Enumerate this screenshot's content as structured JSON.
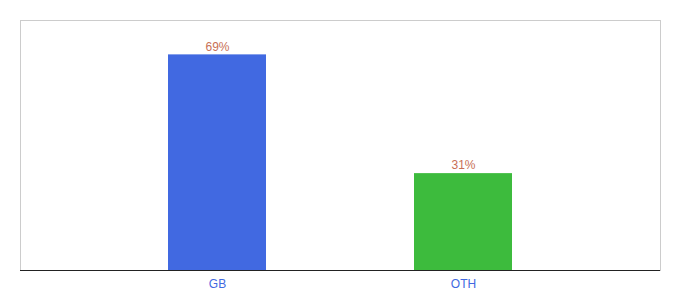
{
  "chart_data": {
    "type": "bar",
    "categories": [
      "GB",
      "OTH"
    ],
    "values": [
      69,
      31
    ],
    "value_labels": [
      "69%",
      "31%"
    ],
    "colors": [
      "#4169e1",
      "#3dbb3d"
    ],
    "ylim": [
      0,
      80
    ],
    "data_labels": true,
    "tick_labels": "x",
    "grid": false
  }
}
